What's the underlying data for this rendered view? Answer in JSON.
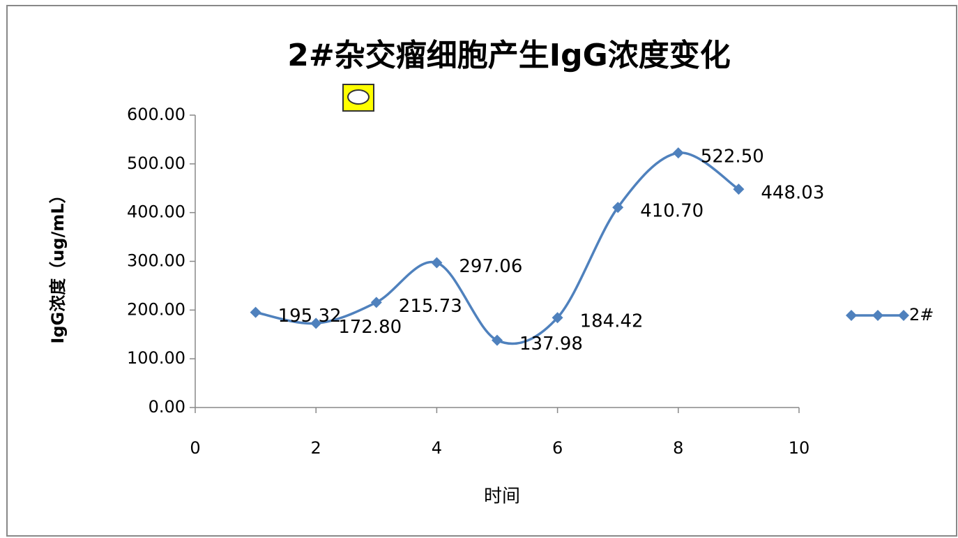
{
  "chart_data": {
    "type": "line",
    "smooth": true,
    "title": "2#杂交瘤细胞产生IgG浓度变化",
    "x_label": "时间",
    "y_label": "IgG浓度（ug/mL）",
    "x": [
      1,
      2,
      3,
      4,
      5,
      6,
      7,
      8,
      9
    ],
    "series": [
      {
        "name": "2#",
        "color": "#4f81bd",
        "values": [
          195.32,
          172.8,
          215.73,
          297.06,
          137.98,
          184.42,
          410.7,
          522.5,
          448.03
        ],
        "value_labels": [
          "195.32",
          "172.80",
          "215.73",
          "297.06",
          "137.98",
          "184.42",
          "410.70",
          "522.50",
          "448.03"
        ]
      }
    ],
    "xlim": [
      0,
      10
    ],
    "xticks": [
      0,
      2,
      4,
      6,
      8,
      10
    ],
    "ylim": [
      0,
      600
    ],
    "yticks": [
      {
        "value": 0,
        "label": "0.00"
      },
      {
        "value": 100,
        "label": "100.00"
      },
      {
        "value": 200,
        "label": "200.00"
      },
      {
        "value": 300,
        "label": "300.00"
      },
      {
        "value": 400,
        "label": "400.00"
      },
      {
        "value": 500,
        "label": "500.00"
      },
      {
        "value": 600,
        "label": "600.00"
      }
    ],
    "grid": false,
    "legend": "right"
  }
}
